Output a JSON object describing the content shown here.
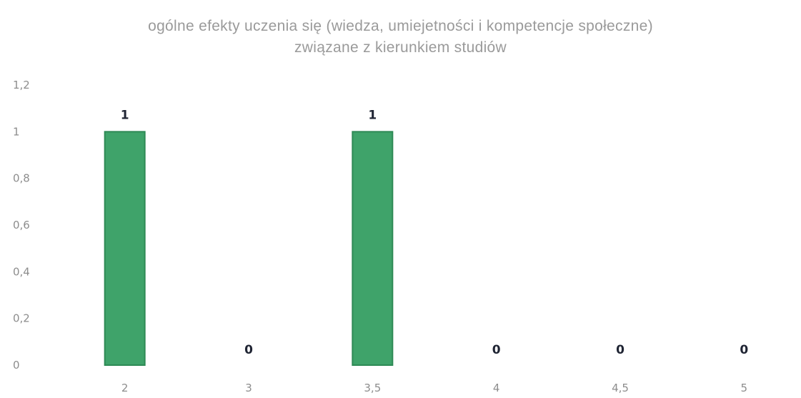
{
  "chart_data": {
    "type": "bar",
    "title_line1": "ogólne efekty uczenia się (wiedza, umiejetności i kompetencje społeczne)",
    "title_line2": "związane z kierunkiem studiów",
    "categories": [
      "2",
      "3",
      "3,5",
      "4",
      "4,5",
      "5"
    ],
    "values": [
      1,
      0,
      1,
      0,
      0,
      0
    ],
    "data_labels": [
      "1",
      "0",
      "1",
      "0",
      "0",
      "0"
    ],
    "y_ticks": [
      "0",
      "0,2",
      "0,4",
      "0,6",
      "0,8",
      "1",
      "1,2"
    ],
    "ylim": [
      0,
      1.2
    ],
    "grid": false,
    "legend": "none",
    "bar_color": "#3fa36a",
    "bar_edge_color": "#2e8a55"
  }
}
